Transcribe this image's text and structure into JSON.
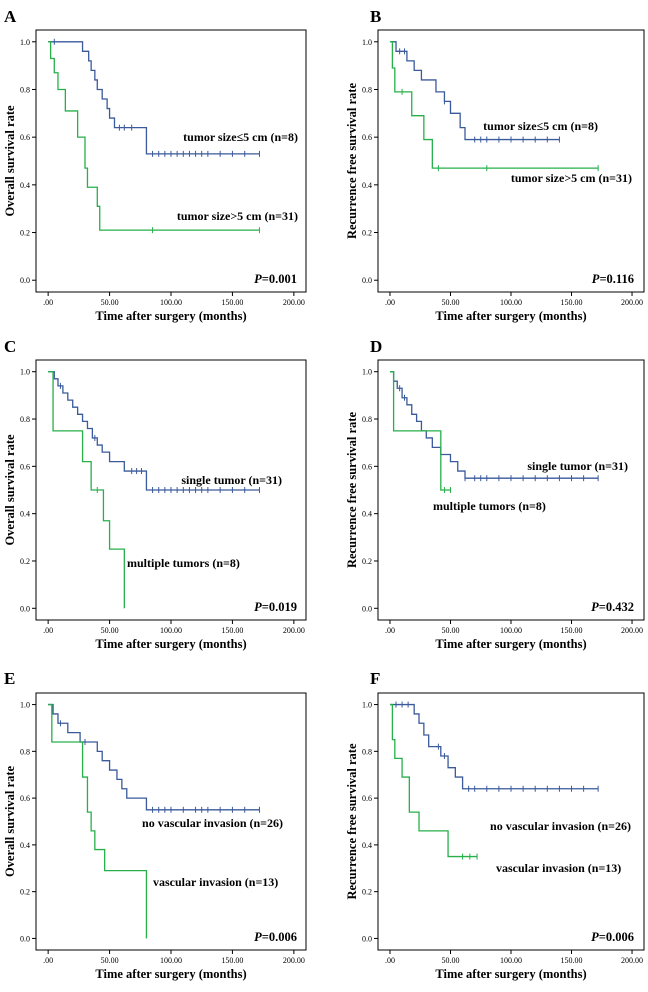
{
  "figure": {
    "x_ticks": [
      ".00",
      "50.00",
      "100.00",
      "150.00",
      "200.00"
    ],
    "y_ticks": [
      "0.0",
      "0.2",
      "0.4",
      "0.6",
      "0.8",
      "1.0"
    ],
    "colors": {
      "group_a": "#3a5a9c",
      "group_b": "#27b04a"
    }
  },
  "chart_data": [
    {
      "panel": "A",
      "type": "line",
      "step": true,
      "ylabel": "Overall survival rate",
      "xlabel": "Time after surgery (months)",
      "xlim": [
        0,
        200
      ],
      "ylim": [
        0,
        1
      ],
      "p_label": "P",
      "p_value": "=0.001",
      "series": [
        {
          "name": "tumor size≤5 cm (n=8)",
          "color": "#3a5a9c",
          "x": [
            0,
            5,
            28,
            33,
            35,
            38,
            40,
            44,
            48,
            50,
            54,
            58,
            62,
            65,
            68,
            72,
            80,
            172
          ],
          "y": [
            1.0,
            1.0,
            0.96,
            0.92,
            0.88,
            0.84,
            0.8,
            0.76,
            0.72,
            0.68,
            0.64,
            0.64,
            0.64,
            0.64,
            0.64,
            0.64,
            0.53,
            0.53
          ],
          "censor_x": [
            5,
            58,
            62,
            68,
            85,
            90,
            95,
            100,
            105,
            110,
            115,
            120,
            125,
            130,
            140,
            150,
            160,
            172
          ]
        },
        {
          "name": "tumor size>5 cm (n=31)",
          "color": "#27b04a",
          "x": [
            0,
            2,
            5,
            8,
            14,
            24,
            30,
            32,
            36,
            40,
            42,
            172
          ],
          "y": [
            1.0,
            0.93,
            0.87,
            0.8,
            0.71,
            0.6,
            0.47,
            0.39,
            0.39,
            0.31,
            0.21,
            0.21
          ],
          "censor_x": [
            85,
            172
          ]
        }
      ]
    },
    {
      "panel": "B",
      "type": "line",
      "step": true,
      "ylabel": "Recurrence free survival rate",
      "xlabel": "Time after surgery (months)",
      "xlim": [
        0,
        200
      ],
      "ylim": [
        0,
        1
      ],
      "p_label": "P",
      "p_value": "=0.116",
      "series": [
        {
          "name": "tumor size≤5 cm (n=8)",
          "color": "#3a5a9c",
          "x": [
            0,
            5,
            14,
            20,
            26,
            38,
            45,
            50,
            58,
            62,
            140
          ],
          "y": [
            1.0,
            0.96,
            0.92,
            0.88,
            0.84,
            0.79,
            0.75,
            0.7,
            0.64,
            0.59,
            0.59
          ],
          "censor_x": [
            8,
            12,
            45,
            70,
            75,
            80,
            90,
            100,
            110,
            120,
            130,
            140
          ]
        },
        {
          "name": "tumor size>5 cm (n=31)",
          "color": "#27b04a",
          "x": [
            0,
            2,
            4,
            18,
            28,
            35,
            172
          ],
          "y": [
            1.0,
            0.89,
            0.79,
            0.69,
            0.59,
            0.47,
            0.47
          ],
          "censor_x": [
            10,
            40,
            80,
            172
          ]
        }
      ]
    },
    {
      "panel": "C",
      "type": "line",
      "step": true,
      "ylabel": "Overall survival rate",
      "xlabel": "Time after surgery (months)",
      "xlim": [
        0,
        200
      ],
      "ylim": [
        0,
        1
      ],
      "p_label": "P",
      "p_value": "=0.019",
      "series": [
        {
          "name": "single tumor (n=31)",
          "color": "#3a5a9c",
          "x": [
            0,
            5,
            8,
            12,
            16,
            20,
            24,
            28,
            32,
            36,
            40,
            44,
            50,
            62,
            70,
            80,
            172
          ],
          "y": [
            1.0,
            0.97,
            0.94,
            0.91,
            0.88,
            0.85,
            0.82,
            0.79,
            0.76,
            0.72,
            0.69,
            0.66,
            0.62,
            0.58,
            0.58,
            0.5,
            0.5
          ],
          "censor_x": [
            10,
            38,
            68,
            72,
            76,
            85,
            90,
            95,
            100,
            105,
            110,
            115,
            120,
            125,
            130,
            140,
            150,
            160,
            172
          ]
        },
        {
          "name": "multiple tumors (n=8)",
          "color": "#27b04a",
          "x": [
            0,
            4,
            28,
            35,
            45,
            50,
            62
          ],
          "y": [
            1.0,
            0.75,
            0.62,
            0.5,
            0.37,
            0.25,
            0.0
          ],
          "censor_x": [
            40
          ]
        }
      ]
    },
    {
      "panel": "D",
      "type": "line",
      "step": true,
      "ylabel": "Recurrence free survival rate",
      "xlabel": "Time after surgery (months)",
      "xlim": [
        0,
        200
      ],
      "ylim": [
        0,
        1
      ],
      "p_label": "P",
      "p_value": "=0.432",
      "series": [
        {
          "name": "single tumor (n=31)",
          "color": "#3a5a9c",
          "x": [
            0,
            3,
            6,
            10,
            14,
            18,
            22,
            26,
            30,
            35,
            42,
            50,
            56,
            62,
            172
          ],
          "y": [
            1.0,
            0.96,
            0.93,
            0.89,
            0.86,
            0.82,
            0.79,
            0.75,
            0.72,
            0.68,
            0.65,
            0.62,
            0.58,
            0.55,
            0.55
          ],
          "censor_x": [
            8,
            12,
            62,
            70,
            75,
            80,
            90,
            100,
            110,
            120,
            130,
            140,
            150,
            160,
            172
          ]
        },
        {
          "name": "multiple tumors (n=8)",
          "color": "#27b04a",
          "x": [
            0,
            3,
            38,
            42,
            50
          ],
          "y": [
            1.0,
            0.75,
            0.75,
            0.5,
            0.5
          ],
          "censor_x": [
            45,
            50
          ]
        }
      ]
    },
    {
      "panel": "E",
      "type": "line",
      "step": true,
      "ylabel": "Overall survival rate",
      "xlabel": "Time after surgery (months)",
      "xlim": [
        0,
        200
      ],
      "ylim": [
        0,
        1
      ],
      "p_label": "P",
      "p_value": "=0.006",
      "series": [
        {
          "name": "no vascular invasion (n=26)",
          "color": "#3a5a9c",
          "x": [
            0,
            4,
            8,
            16,
            26,
            40,
            44,
            50,
            56,
            60,
            64,
            80,
            172
          ],
          "y": [
            1.0,
            0.96,
            0.92,
            0.88,
            0.84,
            0.8,
            0.76,
            0.72,
            0.68,
            0.64,
            0.6,
            0.55,
            0.55
          ],
          "censor_x": [
            10,
            30,
            85,
            90,
            95,
            100,
            110,
            120,
            125,
            130,
            140,
            150,
            160,
            172
          ]
        },
        {
          "name": "vascular invasion (n=13)",
          "color": "#27b04a",
          "x": [
            0,
            3,
            28,
            32,
            35,
            38,
            46,
            80
          ],
          "y": [
            1.0,
            0.84,
            0.69,
            0.54,
            0.46,
            0.38,
            0.29,
            0.0
          ],
          "censor_x": []
        }
      ]
    },
    {
      "panel": "F",
      "type": "line",
      "step": true,
      "ylabel": "Recurrence free survival rate",
      "xlabel": "Time after surgery (months)",
      "xlim": [
        0,
        200
      ],
      "ylim": [
        0,
        1
      ],
      "p_label": "P",
      "p_value": "=0.006",
      "series": [
        {
          "name": "no vascular invasion (n=26)",
          "color": "#3a5a9c",
          "x": [
            0,
            20,
            24,
            28,
            32,
            38,
            42,
            48,
            54,
            60,
            172
          ],
          "y": [
            1.0,
            0.96,
            0.92,
            0.87,
            0.82,
            0.82,
            0.78,
            0.73,
            0.69,
            0.64,
            0.64
          ],
          "censor_x": [
            5,
            10,
            15,
            40,
            45,
            65,
            70,
            80,
            90,
            100,
            110,
            120,
            130,
            140,
            150,
            160,
            172
          ]
        },
        {
          "name": "vascular invasion (n=13)",
          "color": "#27b04a",
          "x": [
            0,
            2,
            4,
            10,
            16,
            24,
            48,
            72
          ],
          "y": [
            1.0,
            0.85,
            0.77,
            0.69,
            0.54,
            0.46,
            0.35,
            0.35
          ],
          "censor_x": [
            60,
            66,
            72
          ]
        }
      ]
    }
  ]
}
